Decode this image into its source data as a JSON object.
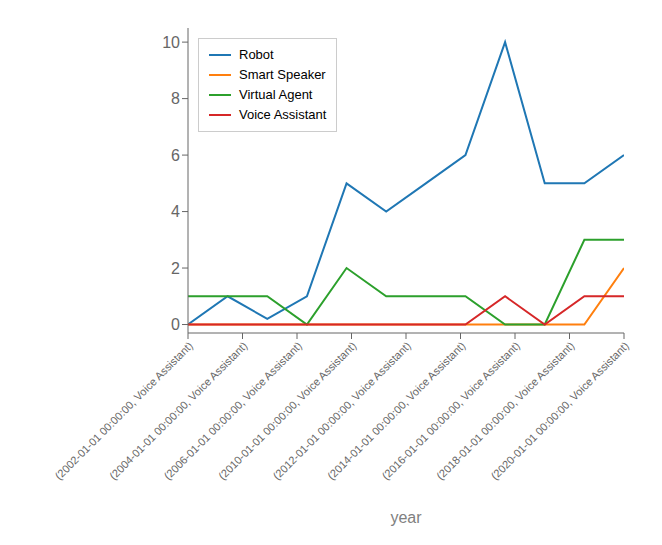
{
  "chart_data": {
    "type": "line",
    "xlabel": "year",
    "x": [
      0,
      1,
      2,
      3,
      4,
      5,
      6,
      7,
      8,
      9,
      10,
      11
    ],
    "xlim": [
      0,
      11
    ],
    "xticks": [
      {
        "value": 0,
        "label": "(2002-01-01 00:00:00, Voice Assistant)"
      },
      {
        "value": 1.375,
        "label": "(2004-01-01 00:00:00, Voice Assistant)"
      },
      {
        "value": 2.75,
        "label": "(2006-01-01 00:00:00, Voice Assistant)"
      },
      {
        "value": 4.125,
        "label": "(2010-01-01 00:00:00, Voice Assistant)"
      },
      {
        "value": 5.5,
        "label": "(2012-01-01 00:00:00, Voice Assistant)"
      },
      {
        "value": 6.875,
        "label": "(2014-01-01 00:00:00, Voice Assistant)"
      },
      {
        "value": 8.25,
        "label": "(2016-01-01 00:00:00, Voice Assistant)"
      },
      {
        "value": 9.625,
        "label": "(2018-01-01 00:00:00, Voice Assistant)"
      },
      {
        "value": 11,
        "label": "(2020-01-01 00:00:00, Voice Assistant)"
      }
    ],
    "ylim": [
      -0.3,
      10.5
    ],
    "yticks": [
      0,
      2,
      4,
      6,
      8,
      10
    ],
    "grid": false,
    "legend": "upper left",
    "series": [
      {
        "name": "Robot",
        "color": "#1f77b4",
        "values": [
          0,
          1,
          0.2,
          1,
          5,
          4,
          5,
          6,
          10,
          5,
          5,
          6
        ]
      },
      {
        "name": "Smart Speaker",
        "color": "#ff7f0e",
        "values": [
          0,
          0,
          0,
          0,
          0,
          0,
          0,
          0,
          0,
          0,
          0,
          2
        ]
      },
      {
        "name": "Virtual Agent",
        "color": "#2ca02c",
        "values": [
          1,
          1,
          1,
          0,
          2,
          1,
          1,
          1,
          0,
          0,
          3,
          3
        ]
      },
      {
        "name": "Voice Assistant",
        "color": "#d62728",
        "values": [
          0,
          0,
          0,
          0,
          0,
          0,
          0,
          0,
          1,
          0,
          1,
          1
        ]
      }
    ]
  }
}
